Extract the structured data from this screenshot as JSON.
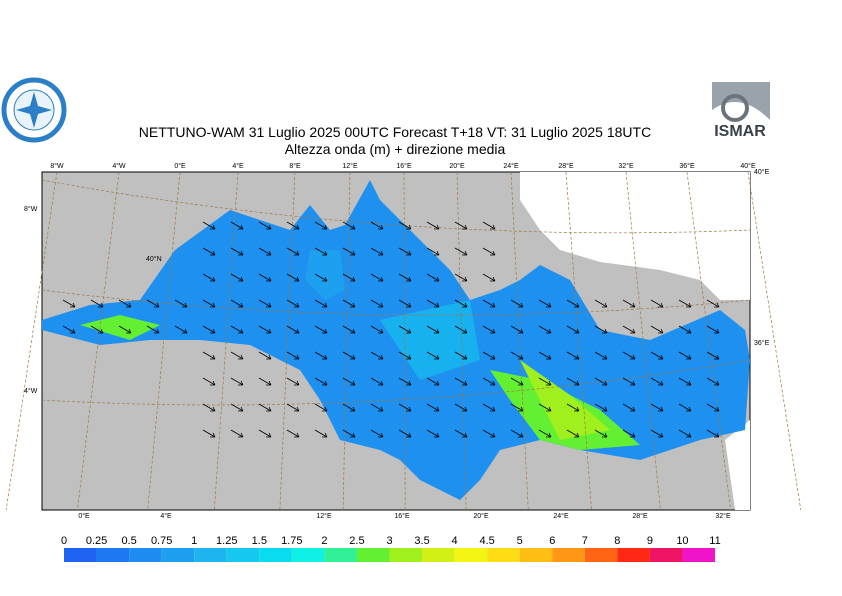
{
  "header": {
    "title": "NETTUNO-WAM  31  Luglio   2025 00UTC Forecast T+18 VT: 31  Luglio   2025 18UTC",
    "subtitle": "Altezza onda (m) + direzione media",
    "logo_right": "ISMAR"
  },
  "map": {
    "top_labels": [
      "8°W",
      "4°W",
      "0°E",
      "4°E",
      "8°E",
      "12°E",
      "16°E",
      "20°E",
      "24°E",
      "28°E",
      "32°E",
      "36°E",
      "40°E"
    ],
    "bottom_labels": [
      "0°E",
      "4°E",
      "12°E",
      "16°E",
      "20°E",
      "24°E",
      "28°E",
      "32°E"
    ],
    "left_labels": [
      "8°W",
      "4°W"
    ],
    "right_labels": [
      "40°E",
      "36°E"
    ],
    "inner_labels": [
      "40°N"
    ]
  },
  "colorbar": {
    "labels": [
      "0",
      "0.25",
      "0.5",
      "0.75",
      "1",
      "1.25",
      "1.5",
      "1.75",
      "2",
      "2.5",
      "3",
      "3.5",
      "4",
      "4.5",
      "5",
      "6",
      "7",
      "8",
      "9",
      "10",
      "11"
    ],
    "colors": [
      "#1e64f0",
      "#1e78f0",
      "#1e8cf0",
      "#1ea0f0",
      "#1eb4f0",
      "#14c8f0",
      "#0adcf0",
      "#0ff0e6",
      "#32f096",
      "#64f032",
      "#a0f01e",
      "#d2f014",
      "#f5f514",
      "#ffdc14",
      "#ffbe14",
      "#ff9614",
      "#ff6414",
      "#ff2814",
      "#f01464",
      "#f014c8"
    ]
  }
}
